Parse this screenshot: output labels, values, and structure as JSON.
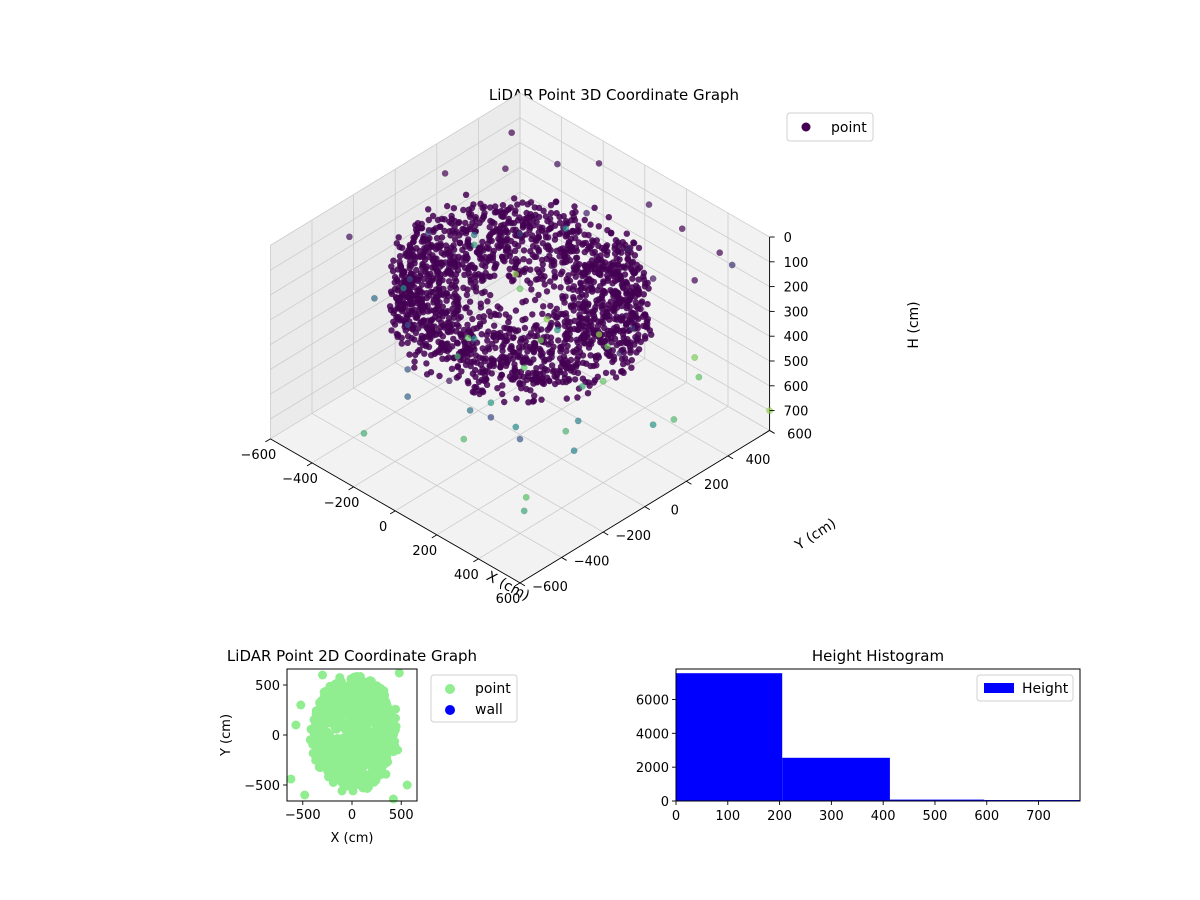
{
  "colors": {
    "cloud_dark": "#440154",
    "cloud_mid": "#3b528b",
    "cloud_teal": "#21918c",
    "cloud_green": "#5ec962",
    "cloud_yellow": "#d6e335",
    "scatter2d_point": "#90ee90",
    "scatter2d_wall": "#0000ff",
    "histogram_bar": "#0000ff",
    "pane_gray": "#f2f2f2",
    "pane_side": "#ebebeb",
    "grid": "#cccccc"
  },
  "chart_data": [
    {
      "id": "3d",
      "type": "scatter",
      "projection": "3d",
      "title": "LiDAR Point 3D Coordinate Graph",
      "xlabel": "X (cm)",
      "ylabel": "Y (cm)",
      "zlabel": "H (cm)",
      "xticks": [
        "−600",
        "−400",
        "−200",
        "0",
        "200",
        "400",
        "600"
      ],
      "yticks": [
        "−600",
        "−400",
        "−200",
        "0",
        "200",
        "400",
        "600"
      ],
      "zticks": [
        "0",
        "100",
        "200",
        "300",
        "400",
        "500",
        "600",
        "700"
      ],
      "xlim": [
        -600,
        600
      ],
      "ylim": [
        -600,
        600
      ],
      "zlim": [
        0,
        700
      ],
      "z_inverted": true,
      "colormap": "viridis by height",
      "legend": {
        "position": "top-right",
        "entries": [
          "point"
        ]
      },
      "series": [
        {
          "name": "point",
          "description": "dense ring/dome of points around the origin at H 100–350 cm, sparse outliers elsewhere",
          "core_ring": {
            "radius_min": 150,
            "radius_max": 470,
            "h_min": 100,
            "h_max": 350
          },
          "outliers": [
            [
              -560,
              -260,
              120
            ],
            [
              -540,
              180,
              80
            ],
            [
              -520,
              480,
              60
            ],
            [
              -480,
              -420,
              140
            ],
            [
              -460,
              20,
              200
            ],
            [
              -420,
              350,
              90
            ],
            [
              -380,
              -150,
              260
            ],
            [
              -340,
              520,
              120
            ],
            [
              -300,
              -560,
              180
            ],
            [
              -260,
              260,
              230
            ],
            [
              -220,
              -320,
              280
            ],
            [
              -180,
              560,
              60
            ],
            [
              -140,
              -80,
              420
            ],
            [
              -100,
              420,
              150
            ],
            [
              -60,
              -480,
              300
            ],
            [
              -20,
              200,
              470
            ],
            [
              20,
              -560,
              330
            ],
            [
              60,
              560,
              110
            ],
            [
              100,
              -240,
              480
            ],
            [
              140,
              380,
              160
            ],
            [
              180,
              -420,
              380
            ],
            [
              220,
              80,
              520
            ],
            [
              260,
              520,
              90
            ],
            [
              300,
              -320,
              440
            ],
            [
              340,
              300,
              140
            ],
            [
              380,
              -520,
              260
            ],
            [
              420,
              120,
              210
            ],
            [
              460,
              -180,
              410
            ],
            [
              500,
              460,
              40
            ],
            [
              540,
              -60,
              160
            ],
            [
              560,
              280,
              30
            ],
            [
              -600,
              -600,
              560
            ],
            [
              -580,
              560,
              700
            ],
            [
              -500,
              -380,
              520
            ],
            [
              -440,
              440,
              630
            ],
            [
              -400,
              -540,
              600
            ],
            [
              -350,
              100,
              610
            ],
            [
              -300,
              430,
              680
            ],
            [
              -250,
              -50,
              560
            ],
            [
              -200,
              300,
              650
            ],
            [
              -150,
              -600,
              540
            ],
            [
              -120,
              500,
              690
            ],
            [
              -80,
              100,
              600
            ],
            [
              0,
              420,
              640
            ],
            [
              80,
              -350,
              580
            ],
            [
              150,
              250,
              620
            ],
            [
              240,
              600,
              660
            ],
            [
              320,
              -100,
              560
            ],
            [
              380,
              480,
              610
            ],
            [
              450,
              -420,
              600
            ],
            [
              520,
              220,
              580
            ],
            [
              580,
              -560,
              520
            ],
            [
              600,
              600,
              700
            ],
            [
              -560,
              0,
              460
            ],
            [
              -520,
              300,
              380
            ],
            [
              560,
              -300,
              420
            ],
            [
              -480,
              -220,
              350
            ],
            [
              500,
              -500,
              300
            ],
            [
              -600,
              380,
              500
            ],
            [
              600,
              40,
              470
            ],
            [
              -380,
              600,
              440
            ],
            [
              420,
              600,
              200
            ],
            [
              -260,
              -600,
              420
            ],
            [
              260,
              -600,
              130
            ]
          ]
        }
      ]
    },
    {
      "id": "2d",
      "type": "scatter",
      "title": "LiDAR Point 2D Coordinate Graph",
      "xlabel": "X (cm)",
      "ylabel": "Y (cm)",
      "xticks": [
        "−500",
        "0",
        "500"
      ],
      "yticks": [
        "−500",
        "0",
        "500"
      ],
      "xlim": [
        -660,
        660
      ],
      "ylim": [
        -660,
        660
      ],
      "legend": {
        "position": "outside-right",
        "entries": [
          "point",
          "wall"
        ]
      },
      "series": [
        {
          "name": "point",
          "description": "dense blob centred near the origin, roughly x −450..500, y −600..640",
          "blob": {
            "x_min": -450,
            "x_max": 500,
            "y_min": -600,
            "y_max": 640
          },
          "outliers": [
            [
              -620,
              -440
            ],
            [
              -570,
              100
            ],
            [
              -520,
              300
            ],
            [
              -480,
              -600
            ],
            [
              560,
              -500
            ],
            [
              480,
              620
            ],
            [
              -300,
              600
            ],
            [
              420,
              -640
            ]
          ]
        },
        {
          "name": "wall",
          "values": []
        }
      ]
    },
    {
      "id": "hist",
      "type": "bar",
      "histogram": true,
      "title": "Height Histogram",
      "xlim": [
        0,
        780
      ],
      "ylim": [
        0,
        7800
      ],
      "xticks": [
        "0",
        "100",
        "200",
        "300",
        "400",
        "500",
        "600",
        "700"
      ],
      "yticks": [
        "0",
        "2000",
        "4000",
        "6000"
      ],
      "legend": {
        "position": "top-right",
        "entries": [
          "Height"
        ]
      },
      "series": [
        {
          "name": "Height",
          "bins": [
            [
              0,
              205,
              7550
            ],
            [
              205,
              413,
              2550
            ],
            [
              413,
              595,
              80
            ],
            [
              595,
              780,
              60
            ]
          ]
        }
      ]
    }
  ]
}
